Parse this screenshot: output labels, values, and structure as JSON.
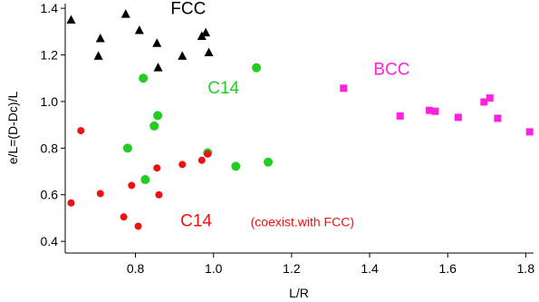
{
  "chart_data": {
    "type": "scatter",
    "title": "",
    "xlabel": "L/R",
    "ylabel": "e/L=(D-Dc)/L",
    "xlim": [
      0.62,
      1.82
    ],
    "ylim": [
      0.35,
      1.42
    ],
    "grid": false,
    "x_ticks": [
      0.8,
      1.0,
      1.2,
      1.4,
      1.6,
      1.8
    ],
    "x_tick_labels": [
      "0.8",
      "1.0",
      "1.2",
      "1.4",
      "1.6",
      "1.8"
    ],
    "y_ticks": [
      0.4,
      0.6,
      0.8,
      1.0,
      1.2,
      1.4
    ],
    "y_tick_labels": [
      "0.4",
      "0.6",
      "0.8",
      "1.0",
      "1.2",
      "1.4"
    ],
    "series": [
      {
        "marker": "triangle",
        "color": "#000000",
        "points": [
          {
            "x": 0.635,
            "y": 1.35
          },
          {
            "x": 0.705,
            "y": 1.195
          },
          {
            "x": 0.71,
            "y": 1.27
          },
          {
            "x": 0.775,
            "y": 1.375
          },
          {
            "x": 0.81,
            "y": 1.305
          },
          {
            "x": 0.855,
            "y": 1.25
          },
          {
            "x": 0.858,
            "y": 1.145
          },
          {
            "x": 0.92,
            "y": 1.195
          },
          {
            "x": 0.97,
            "y": 1.28
          },
          {
            "x": 0.98,
            "y": 1.295
          },
          {
            "x": 0.988,
            "y": 1.21
          }
        ]
      },
      {
        "marker": "square",
        "color": "#ff22dd",
        "points": [
          {
            "x": 1.333,
            "y": 1.057
          },
          {
            "x": 1.478,
            "y": 0.938
          },
          {
            "x": 1.553,
            "y": 0.962
          },
          {
            "x": 1.568,
            "y": 0.958
          },
          {
            "x": 1.627,
            "y": 0.932
          },
          {
            "x": 1.693,
            "y": 0.998
          },
          {
            "x": 1.708,
            "y": 1.015
          },
          {
            "x": 1.728,
            "y": 0.928
          },
          {
            "x": 1.81,
            "y": 0.87
          }
        ]
      },
      {
        "marker": "circle",
        "color": "#22cc22",
        "points": [
          {
            "x": 0.82,
            "y": 1.1
          },
          {
            "x": 0.857,
            "y": 0.94
          },
          {
            "x": 0.848,
            "y": 0.895
          },
          {
            "x": 0.78,
            "y": 0.8
          },
          {
            "x": 0.825,
            "y": 0.665
          },
          {
            "x": 0.985,
            "y": 0.78
          },
          {
            "x": 1.057,
            "y": 0.722
          },
          {
            "x": 1.11,
            "y": 1.145
          },
          {
            "x": 1.14,
            "y": 0.74
          }
        ]
      },
      {
        "marker": "circle",
        "color": "#ee1111",
        "points": [
          {
            "x": 0.66,
            "y": 0.875
          },
          {
            "x": 0.635,
            "y": 0.565
          },
          {
            "x": 0.71,
            "y": 0.605
          },
          {
            "x": 0.77,
            "y": 0.505
          },
          {
            "x": 0.79,
            "y": 0.64
          },
          {
            "x": 0.807,
            "y": 0.465
          },
          {
            "x": 0.855,
            "y": 0.715
          },
          {
            "x": 0.86,
            "y": 0.6
          },
          {
            "x": 0.92,
            "y": 0.73
          },
          {
            "x": 0.97,
            "y": 0.748
          },
          {
            "x": 0.985,
            "y": 0.775
          }
        ]
      }
    ],
    "annotations": [
      {
        "text": "FCC",
        "color": "#000000",
        "at": [
          0.89,
          1.375
        ],
        "size": "large"
      },
      {
        "text": "BCC",
        "color": "#ff22dd",
        "at": [
          1.41,
          1.115
        ],
        "size": "large"
      },
      {
        "text": "C14",
        "color": "#22cc22",
        "at": [
          0.985,
          1.035
        ],
        "size": "large"
      },
      {
        "text": "C14",
        "color": "#ee1111",
        "at": [
          0.915,
          0.465
        ],
        "size": "large"
      },
      {
        "text": "(coexist.with FCC)",
        "color": "#ee1111",
        "at": [
          1.095,
          0.465
        ],
        "size": "small"
      }
    ]
  }
}
